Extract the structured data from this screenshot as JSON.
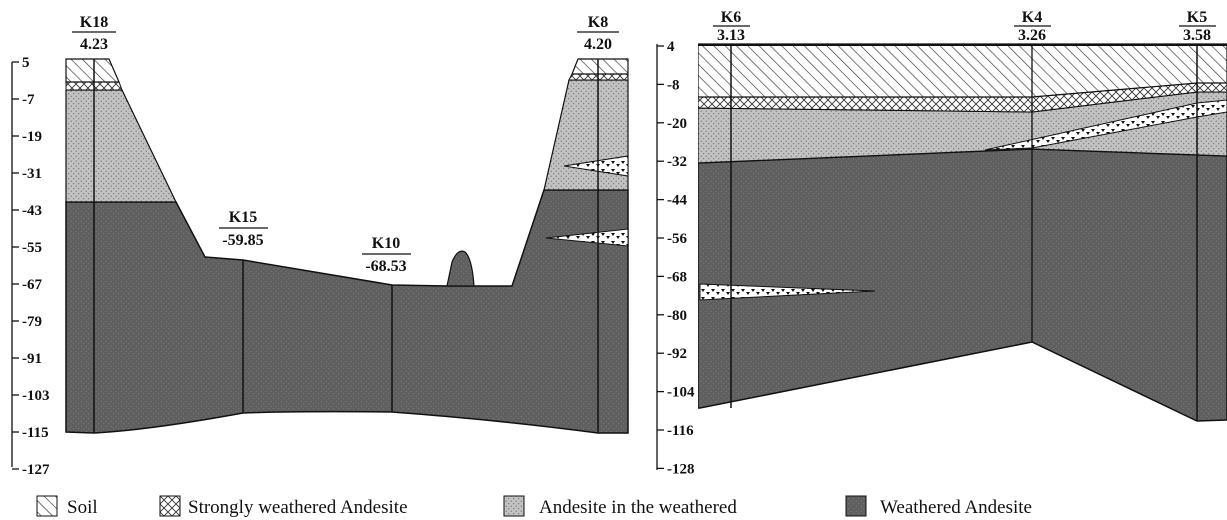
{
  "left_section": {
    "axis_ticks": [
      "5",
      "-7",
      "-19",
      "-31",
      "-43",
      "-55",
      "-67",
      "-79",
      "-91",
      "-103",
      "-115",
      "-127"
    ],
    "boreholes": [
      {
        "name": "K18",
        "elevation": "4.23"
      },
      {
        "name": "K15",
        "elevation": "-59.85"
      },
      {
        "name": "K10",
        "elevation": "-68.53"
      },
      {
        "name": "K8",
        "elevation": "4.20"
      }
    ]
  },
  "right_section": {
    "axis_ticks": [
      "4",
      "-8",
      "-20",
      "-32",
      "-44",
      "-56",
      "-68",
      "-80",
      "-92",
      "-104",
      "-116",
      "-128"
    ],
    "boreholes": [
      {
        "name": "K6",
        "elevation": "3.13"
      },
      {
        "name": "K4",
        "elevation": "3.26"
      },
      {
        "name": "K5",
        "elevation": "3.58"
      }
    ]
  },
  "legend": [
    {
      "label": "Soil",
      "pattern": "soil-hatch"
    },
    {
      "label": "Strongly weathered Andesite",
      "pattern": "crosshatch"
    },
    {
      "label": "Andesite in the weathered",
      "pattern": "light-dotted"
    },
    {
      "label": "Weathered Andesite",
      "pattern": "dark-dotted"
    }
  ],
  "colors": {
    "light_andesite": "#c2c2c2",
    "weathered_andesite": "#5f5f5f",
    "line": "#111111"
  }
}
